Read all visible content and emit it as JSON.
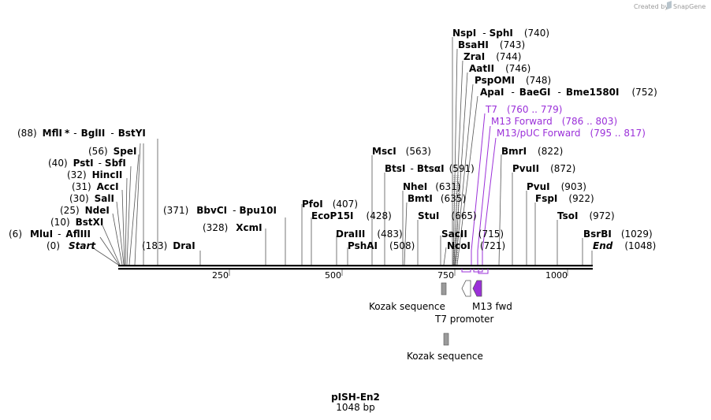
{
  "credit": {
    "text": "Created by",
    "brand": "SnapGene"
  },
  "plasmid": {
    "name": "pISH-En2",
    "length_label": "1048 bp"
  },
  "colors": {
    "primer": "#9b30d9",
    "feature_gray": "#9a9a9a",
    "backbone": "#000000"
  },
  "ruler": {
    "ticks": [
      "250",
      "500",
      "750",
      "1000"
    ]
  },
  "sites": {
    "start": {
      "pos": "(0)",
      "name": "Start"
    },
    "mlui": {
      "pos": "(6)",
      "a": "MluI",
      "sep": "-",
      "b": "AflIII"
    },
    "bstxi": {
      "pos": "(10)",
      "name": "BstXI"
    },
    "ndei": {
      "pos": "(25)",
      "name": "NdeI"
    },
    "sali": {
      "pos": "(30)",
      "name": "SalI"
    },
    "acci": {
      "pos": "(31)",
      "name": "AccI"
    },
    "hincii": {
      "pos": "(32)",
      "name": "HincII"
    },
    "psti": {
      "pos": "(40)",
      "a": "PstI",
      "sep": "-",
      "b": "SbfI"
    },
    "spei": {
      "pos": "(56)",
      "name": "SpeI"
    },
    "mfli": {
      "pos": "(88)",
      "a": "MflI",
      "star": "*",
      "sep1": "-",
      "b": "BglII",
      "sep2": "-",
      "c": "BstYI"
    },
    "drai": {
      "pos": "(183)",
      "name": "DraI"
    },
    "xcmi": {
      "pos": "(328)",
      "name": "XcmI"
    },
    "bbvci": {
      "pos": "(371)",
      "a": "BbvCI",
      "sep": "-",
      "b": "Bpu10I"
    },
    "pfoi": {
      "name": "PfoI",
      "pos": "(407)"
    },
    "ecop15i": {
      "name": "EcoP15I",
      "pos": "(428)"
    },
    "draiii": {
      "name": "DraIII",
      "pos": "(483)"
    },
    "pshai": {
      "name": "PshAI",
      "pos": "(508)"
    },
    "msci": {
      "name": "MscI",
      "pos": "(563)"
    },
    "btsi": {
      "a": "BtsI",
      "sep": "-",
      "b": "BtsαI",
      "pos": "(591)"
    },
    "nhei": {
      "name": "NheI",
      "pos": "(631)"
    },
    "bmti": {
      "name": "BmtI",
      "pos": "(635)"
    },
    "stui": {
      "name": "StuI",
      "pos": "(665)"
    },
    "sacii": {
      "name": "SacII",
      "pos": "(715)"
    },
    "ncoi": {
      "name": "NcoI",
      "pos": "(721)"
    },
    "nspi": {
      "a": "NspI",
      "sep": "-",
      "b": "SphI",
      "pos": "(740)"
    },
    "bsahi": {
      "name": "BsaHI",
      "pos": "(743)"
    },
    "zrai": {
      "name": "ZraI",
      "pos": "(744)"
    },
    "aatii": {
      "name": "AatII",
      "pos": "(746)"
    },
    "pspomi": {
      "name": "PspOMI",
      "pos": "(748)"
    },
    "apai": {
      "a": "ApaI",
      "sep1": "-",
      "b": "BaeGI",
      "sep2": "-",
      "c": "Bme1580I",
      "pos": "(752)"
    },
    "bmri": {
      "name": "BmrI",
      "pos": "(822)"
    },
    "pvuii": {
      "name": "PvuII",
      "pos": "(872)"
    },
    "pvui": {
      "name": "PvuI",
      "pos": "(903)"
    },
    "fspi": {
      "name": "FspI",
      "pos": "(922)"
    },
    "tsoi": {
      "name": "TsoI",
      "pos": "(972)"
    },
    "bsrbi": {
      "name": "BsrBI",
      "pos": "(1029)"
    },
    "end": {
      "name": "End",
      "pos": "(1048)"
    }
  },
  "primers": [
    {
      "name": "T7",
      "range": "(760 .. 779)"
    },
    {
      "name": "M13 Forward",
      "range": "(786 .. 803)"
    },
    {
      "name": "M13/pUC Forward",
      "range": "(795 .. 817)"
    }
  ],
  "features": {
    "kozak_1": "Kozak sequence",
    "t7_promoter": "T7 promoter",
    "m13_fwd": "M13 fwd",
    "kozak_2": "Kozak sequence"
  }
}
